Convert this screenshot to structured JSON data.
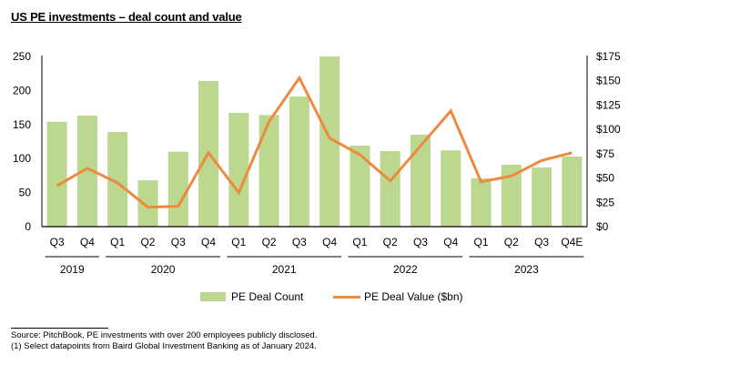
{
  "title": "US PE investments – deal count and value",
  "colors": {
    "bar": "#BCD78E",
    "line": "#ED8A3F",
    "axis": "#000000"
  },
  "chart_data": {
    "type": "bar+line",
    "title": "US PE investments – deal count and value",
    "categories": [
      "Q3",
      "Q4",
      "Q1",
      "Q2",
      "Q3",
      "Q4",
      "Q1",
      "Q2",
      "Q3",
      "Q4",
      "Q1",
      "Q2",
      "Q3",
      "Q4",
      "Q1",
      "Q2",
      "Q3",
      "Q4E"
    ],
    "year_groups": [
      {
        "label": "2019",
        "start": 0,
        "end": 1
      },
      {
        "label": "2020",
        "start": 2,
        "end": 5
      },
      {
        "label": "2021",
        "start": 6,
        "end": 9
      },
      {
        "label": "2022",
        "start": 10,
        "end": 13
      },
      {
        "label": "2023",
        "start": 14,
        "end": 17
      }
    ],
    "series": [
      {
        "name": "PE Deal Count",
        "type": "bar",
        "axis": "left",
        "values": [
          154,
          163,
          139,
          68,
          110,
          214,
          167,
          164,
          191,
          250,
          119,
          111,
          135,
          112,
          71,
          91,
          87,
          103
        ]
      },
      {
        "name": "PE Deal Value ($bn)",
        "type": "line",
        "axis": "right",
        "values": [
          42,
          60,
          45,
          20,
          21,
          76,
          35,
          108,
          153,
          91,
          74,
          47,
          83,
          119,
          46,
          52,
          68,
          76
        ]
      }
    ],
    "left_axis": {
      "ylim": [
        0,
        250
      ],
      "ticks": [
        0,
        50,
        100,
        150,
        200,
        250
      ],
      "tick_labels": [
        "0",
        "50",
        "100",
        "150",
        "200",
        "250"
      ]
    },
    "right_axis": {
      "ylim": [
        0,
        175
      ],
      "ticks": [
        0,
        25,
        50,
        75,
        100,
        125,
        150,
        175
      ],
      "tick_labels": [
        "$0",
        "$25",
        "$50",
        "$75",
        "$100",
        "$125",
        "$150",
        "$175"
      ]
    },
    "xlabel": "",
    "ylabel": "",
    "grid": false,
    "legend": "bottom-center"
  },
  "legend": [
    {
      "label": "PE Deal Count"
    },
    {
      "label": "PE Deal Value ($bn)"
    }
  ],
  "footnotes": {
    "source": "Source:  PitchBook, PE investments with over 200 employees publicly disclosed.",
    "note1": "(1)  Select datapoints from Baird Global Investment Banking as of January 2024."
  }
}
